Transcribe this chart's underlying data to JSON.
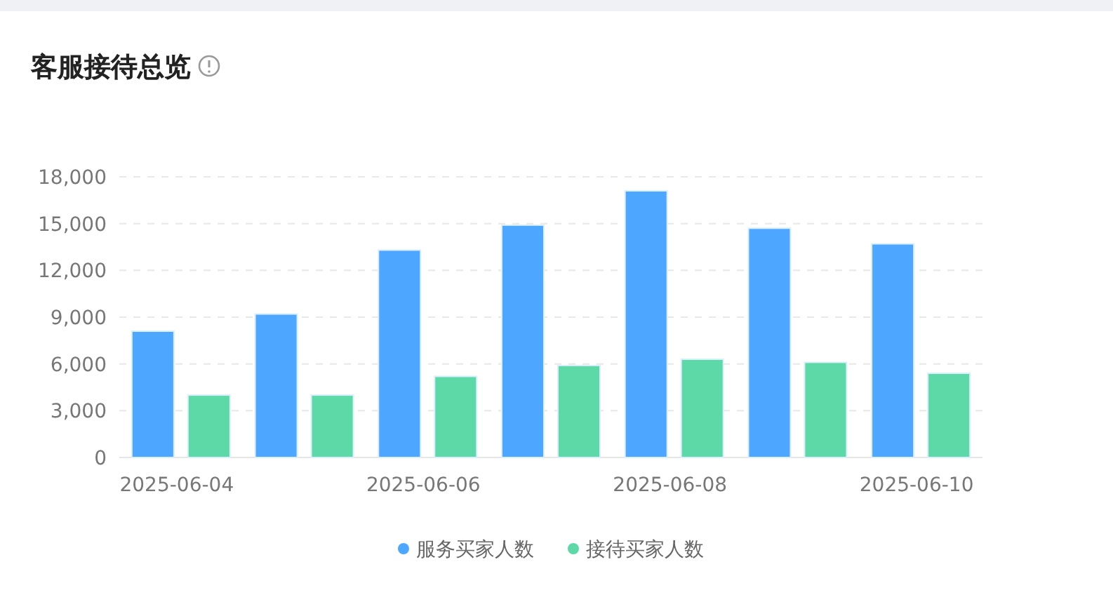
{
  "chart_data": {
    "type": "bar",
    "title": "客服接待总览",
    "categories": [
      "2025-06-04",
      null,
      "2025-06-06",
      null,
      "2025-06-08",
      null,
      "2025-06-10"
    ],
    "series": [
      {
        "name": "服务买家人数",
        "color": "#4da6ff",
        "values": [
          8100,
          9200,
          13300,
          14900,
          17100,
          14700,
          13700
        ]
      },
      {
        "name": "接待买家人数",
        "color": "#5cd9a6",
        "values": [
          4000,
          4000,
          5200,
          5900,
          6300,
          6100,
          5400
        ]
      }
    ],
    "ylim": [
      0,
      18000
    ],
    "yticks": [
      {
        "value": 0,
        "label": "0"
      },
      {
        "value": 3000,
        "label": "3,000"
      },
      {
        "value": 6000,
        "label": "6,000"
      },
      {
        "value": 9000,
        "label": "9,000"
      },
      {
        "value": 12000,
        "label": "12,000"
      },
      {
        "value": 15000,
        "label": "15,000"
      },
      {
        "value": 18000,
        "label": "18,000"
      }
    ],
    "grid": "y",
    "legend": "bottom",
    "marker": "circle"
  }
}
